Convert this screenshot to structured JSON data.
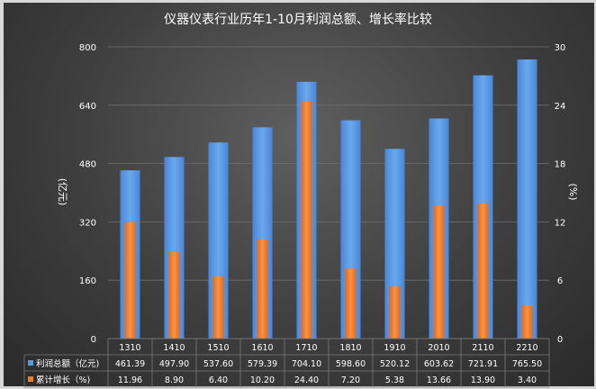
{
  "chart_data": {
    "type": "bar",
    "title": "仪器仪表行业历年1-10月利润总额、增长率比较",
    "categories": [
      "1310",
      "1410",
      "1510",
      "1610",
      "1710",
      "1810",
      "1910",
      "2010",
      "2110",
      "2210"
    ],
    "series": [
      {
        "name": "利润总额（亿元)",
        "axis": "left",
        "color": "#5b9bd5",
        "values": [
          461.39,
          497.9,
          537.6,
          579.39,
          704.1,
          598.6,
          520.12,
          603.62,
          721.91,
          765.5
        ],
        "labels": [
          "461.39",
          "497.90",
          "537.60",
          "579.39",
          "704.10",
          "598.60",
          "520.12",
          "603.62",
          "721.91",
          "765.50"
        ]
      },
      {
        "name": "累计增长（%)",
        "axis": "right",
        "color": "#ed7d31",
        "values": [
          11.96,
          8.9,
          6.4,
          10.2,
          24.4,
          7.2,
          5.38,
          13.66,
          13.9,
          3.4
        ],
        "labels": [
          "11.96",
          "8.90",
          "6.40",
          "10.20",
          "24.40",
          "7.20",
          "5.38",
          "13.66",
          "13.90",
          "3.40"
        ]
      }
    ],
    "ylabel_left": "(亿元)",
    "ylabel_right": "(%)",
    "ylim_left": [
      0,
      800
    ],
    "ylim_right": [
      0,
      30
    ],
    "yticks_left": [
      "0",
      "160",
      "320",
      "480",
      "640",
      "800"
    ],
    "yticks_right": [
      "0",
      "6",
      "12",
      "18",
      "24",
      "30"
    ],
    "grid": true,
    "data_table": true
  }
}
